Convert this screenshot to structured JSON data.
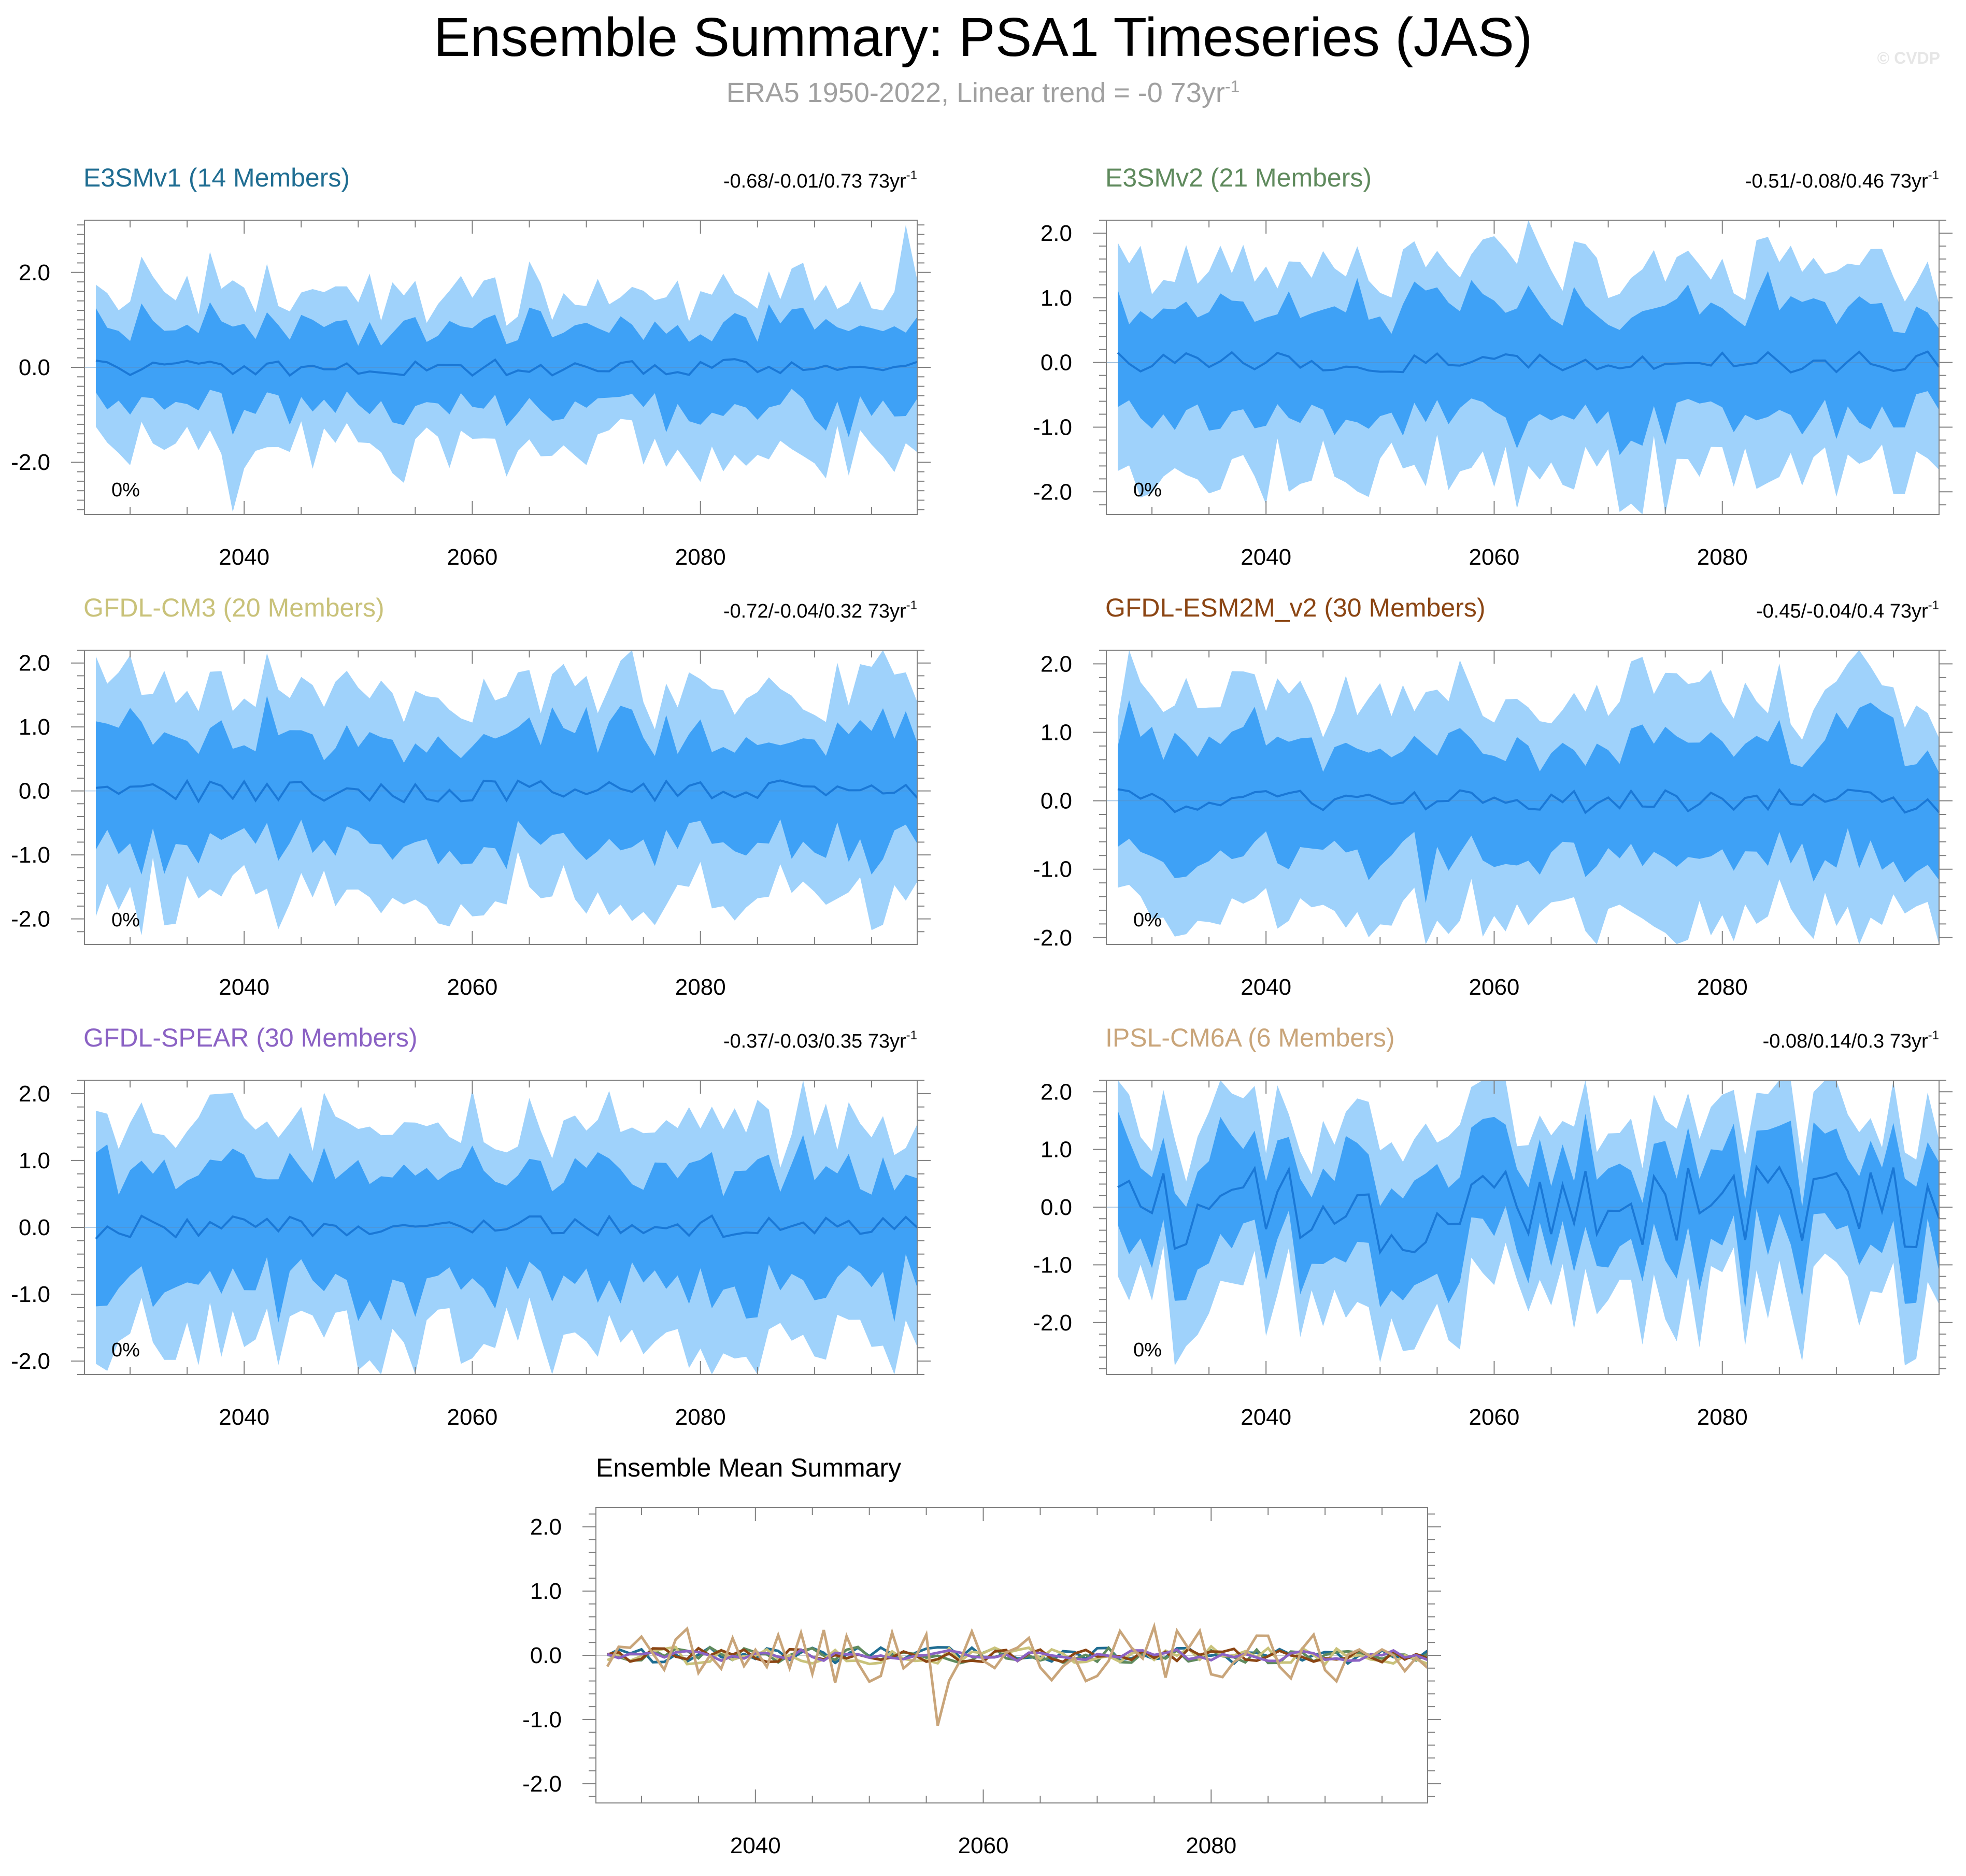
{
  "title": "Ensemble Summary: PSA1 Timeseries (JAS)",
  "subtitle": "ERA5 1950-2022, Linear trend = -0 73yr",
  "subtitle_superscript": "-1",
  "watermark": "© CVDP",
  "colors": {
    "outer_band": "#9fd2fb",
    "inner_band": "#3ea1f6",
    "mean_line": "#1a78d6",
    "axis": "#808080"
  },
  "chart_data": [
    {
      "type": "area",
      "title": "E3SMv1 (14 Members)",
      "title_color": "#1f6d92",
      "trend_label": "-0.68/-0.01/0.73 73yr",
      "trend_superscript": "-1",
      "percent_label": "0%",
      "x_start": 2027,
      "x_end": 2099,
      "xlim": [
        2026,
        2099
      ],
      "ylim": [
        -3.1,
        3.1
      ],
      "yticks": [
        "-2.0",
        "0.0",
        "2.0"
      ],
      "ytick_values": [
        -2,
        0,
        2
      ],
      "xticks": [
        "2040",
        "2060",
        "2080"
      ],
      "xtick_values": [
        2040,
        2060,
        2080
      ],
      "amp": 1.05,
      "seed": 11,
      "spike": [
        [
          2098,
          3.0
        ],
        [
          2039,
          -3.05
        ]
      ]
    },
    {
      "type": "area",
      "title": "E3SMv2 (21 Members)",
      "title_color": "#5f8a5d",
      "trend_label": "-0.51/-0.08/0.46 73yr",
      "trend_superscript": "-1",
      "percent_label": "0%",
      "x_start": 2027,
      "x_end": 2099,
      "xlim": [
        2026,
        2099
      ],
      "ylim": [
        -2.35,
        2.2
      ],
      "yticks": [
        "-2.0",
        "-1.0",
        "0.0",
        "1.0",
        "2.0"
      ],
      "ytick_values": [
        -2,
        -1,
        0,
        1,
        2
      ],
      "xticks": [
        "2040",
        "2060",
        "2080"
      ],
      "xtick_values": [
        2040,
        2060,
        2080
      ],
      "amp": 1.0,
      "seed": 23,
      "spike": []
    },
    {
      "type": "area",
      "title": "GFDL-CM3 (20 Members)",
      "title_color": "#c9c27a",
      "trend_label": "-0.72/-0.04/0.32 73yr",
      "trend_superscript": "-1",
      "percent_label": "0%",
      "x_start": 2027,
      "x_end": 2099,
      "xlim": [
        2026,
        2099
      ],
      "ylim": [
        -2.4,
        2.2
      ],
      "yticks": [
        "-2.0",
        "-1.0",
        "0.0",
        "1.0",
        "2.0"
      ],
      "ytick_values": [
        -2,
        -1,
        0,
        1,
        2
      ],
      "xticks": [
        "2040",
        "2060",
        "2080"
      ],
      "xtick_values": [
        2040,
        2060,
        2080
      ],
      "amp": 1.0,
      "seed": 37,
      "spike": []
    },
    {
      "type": "area",
      "title": "GFDL-ESM2M_v2 (30 Members)",
      "title_color": "#8b4513",
      "trend_label": "-0.45/-0.04/0.4 73yr",
      "trend_superscript": "-1",
      "percent_label": "0%",
      "x_start": 2027,
      "x_end": 2099,
      "xlim": [
        2026,
        2099
      ],
      "ylim": [
        -2.1,
        2.2
      ],
      "yticks": [
        "-2.0",
        "-1.0",
        "0.0",
        "1.0",
        "2.0"
      ],
      "ytick_values": [
        -2,
        -1,
        0,
        1,
        2
      ],
      "xticks": [
        "2040",
        "2060",
        "2080"
      ],
      "xtick_values": [
        2040,
        2060,
        2080
      ],
      "amp": 0.95,
      "seed": 41,
      "spike": []
    },
    {
      "type": "area",
      "title": "GFDL-SPEAR (30 Members)",
      "title_color": "#8b62c4",
      "trend_label": "-0.37/-0.03/0.35 73yr",
      "trend_superscript": "-1",
      "percent_label": "0%",
      "x_start": 2027,
      "x_end": 2099,
      "xlim": [
        2026,
        2099
      ],
      "ylim": [
        -2.2,
        2.2
      ],
      "yticks": [
        "-2.0",
        "-1.0",
        "0.0",
        "1.0",
        "2.0"
      ],
      "ytick_values": [
        -2,
        -1,
        0,
        1,
        2
      ],
      "xticks": [
        "2040",
        "2060",
        "2080"
      ],
      "xtick_values": [
        2040,
        2060,
        2080
      ],
      "amp": 0.95,
      "seed": 53,
      "spike": []
    },
    {
      "type": "area",
      "title": "IPSL-CM6A (6 Members)",
      "title_color": "#c9a57a",
      "trend_label": "-0.08/0.14/0.3 73yr",
      "trend_superscript": "-1",
      "percent_label": "0%",
      "x_start": 2027,
      "x_end": 2099,
      "xlim": [
        2026,
        2099
      ],
      "ylim": [
        -2.9,
        2.2
      ],
      "yticks": [
        "-2.0",
        "-1.0",
        "0.0",
        "1.0",
        "2.0"
      ],
      "ytick_values": [
        -2,
        -1,
        0,
        1,
        2
      ],
      "xticks": [
        "2040",
        "2060",
        "2080"
      ],
      "xtick_values": [
        2040,
        2060,
        2080
      ],
      "amp": 0.9,
      "seed": 67,
      "spike": [],
      "volatile_mean": true
    },
    {
      "type": "line",
      "title": "Ensemble Mean Summary",
      "title_color": "#000000",
      "x_start": 2027,
      "x_end": 2099,
      "xlim": [
        2026,
        2099
      ],
      "ylim": [
        -2.3,
        2.3
      ],
      "yticks": [
        "-2.0",
        "-1.0",
        "0.0",
        "1.0",
        "2.0"
      ],
      "ytick_values": [
        -2,
        -1,
        0,
        1,
        2
      ],
      "xticks": [
        "2040",
        "2060",
        "2080"
      ],
      "xtick_values": [
        2040,
        2060,
        2080
      ],
      "series": [
        {
          "name": "E3SMv1",
          "color": "#1f6d92",
          "amp": 0.13,
          "seed": 11
        },
        {
          "name": "E3SMv2",
          "color": "#5f8a5d",
          "amp": 0.13,
          "seed": 23
        },
        {
          "name": "GFDL-CM3",
          "color": "#c9c27a",
          "amp": 0.14,
          "seed": 37
        },
        {
          "name": "GFDL-ESM2M_v2",
          "color": "#8b4513",
          "amp": 0.11,
          "seed": 41
        },
        {
          "name": "GFDL-SPEAR",
          "color": "#8b62c4",
          "amp": 0.09,
          "seed": 53
        },
        {
          "name": "IPSL-CM6A",
          "color": "#c9a57a",
          "amp": 0.45,
          "seed": 67
        }
      ]
    }
  ]
}
